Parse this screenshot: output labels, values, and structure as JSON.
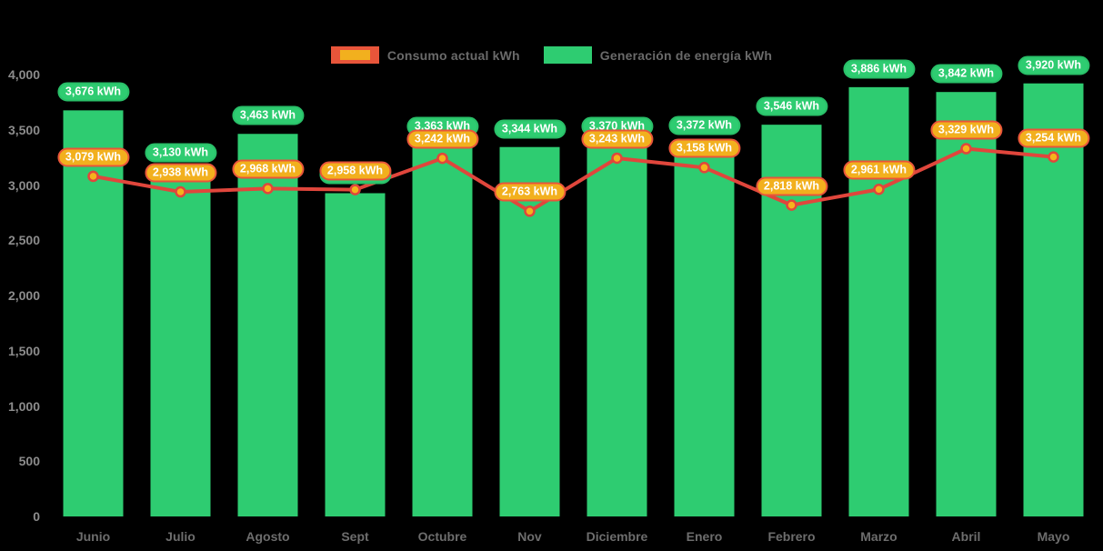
{
  "legend": {
    "items": [
      {
        "label": "Consumo actual kWh",
        "series": "consumo"
      },
      {
        "label": "Generación de energía kWh",
        "series": "generacion"
      }
    ]
  },
  "colors": {
    "background": "#000000",
    "bar_green": "#2ecc71",
    "bar_label_fill": "#2ecc71",
    "bar_label_border": "#29bf68",
    "line_red": "#e0463c",
    "line_label_fill": "#f2b01e",
    "line_label_border": "#e8553a",
    "point_fill": "#f5b31c",
    "point_stroke": "#e0463c",
    "y_axis_text": "#8c8c8c",
    "x_axis_text": "#6d6d6d",
    "legend_text": "#6a6a6a"
  },
  "y_axis": {
    "tick_labels": [
      "4,000",
      "3,500",
      "3,000",
      "2,500",
      "2,000",
      "1,500",
      "1,000",
      "500",
      "0"
    ],
    "tick_values": [
      4000,
      3500,
      3000,
      2500,
      2000,
      1500,
      1000,
      500,
      0
    ]
  },
  "chart_data": {
    "type": "bar",
    "title": "",
    "categories": [
      "Junio",
      "Julio",
      "Agosto",
      "Sept",
      "Octubre",
      "Nov",
      "Diciembre",
      "Enero",
      "Febrero",
      "Marzo",
      "Abril",
      "Mayo"
    ],
    "series": [
      {
        "name": "Generación de energía kWh",
        "type": "bar",
        "color": "#2ecc71",
        "values": [
          3676,
          3130,
          3463,
          2926,
          3363,
          3344,
          3370,
          3372,
          3546,
          3886,
          3842,
          3920
        ],
        "data_labels": [
          "3,676 kWh",
          "3,130 kWh",
          "3,463 kWh",
          "2,926 kWh",
          "3,363 kWh",
          "3,344 kWh",
          "3,370 kWh",
          "3,372 kWh",
          "3,546 kWh",
          "3,886 kWh",
          "3,842 kWh",
          "3,920 kWh"
        ]
      },
      {
        "name": "Consumo actual kWh",
        "type": "line",
        "color": "#e0463c",
        "values": [
          3079,
          2938,
          2968,
          2958,
          3242,
          2763,
          3243,
          3158,
          2818,
          2961,
          3329,
          3254
        ],
        "data_labels": [
          "3,079 kWh",
          "2,938 kWh",
          "2,968 kWh",
          "2,958 kWh",
          "3,242 kWh",
          "2,763 kWh",
          "3,243 kWh",
          "3,158 kWh",
          "2,818 kWh",
          "2,961 kWh",
          "3,329 kWh",
          "3,254 kWh"
        ]
      }
    ],
    "ylim": [
      0,
      4000
    ],
    "xlabel": "",
    "ylabel": "",
    "grid": false,
    "legend_position": "top"
  }
}
